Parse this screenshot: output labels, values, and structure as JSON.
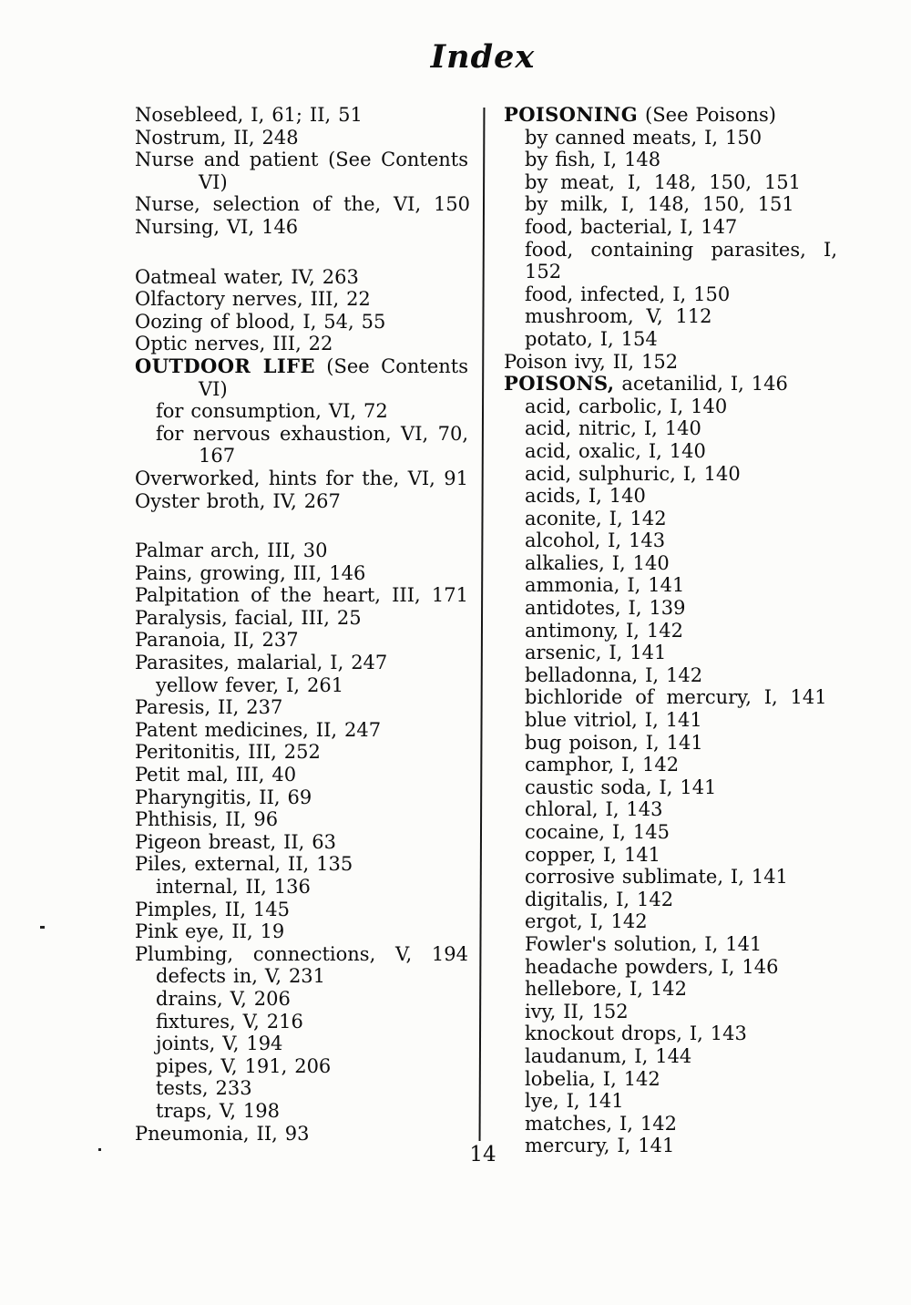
{
  "page": {
    "title": "Index",
    "page_number": "14",
    "colors": {
      "paper": "#fcfcfa",
      "ink": "#0d0d0d"
    }
  },
  "columns": {
    "left": [
      {
        "t": "Nosebleed, I, 61; II, 51"
      },
      {
        "t": "Nostrum, II, 248"
      },
      {
        "t": "Nurse and patient (See Contents",
        "j": true
      },
      {
        "t": "VI)",
        "i": 2
      },
      {
        "t": "Nurse, selection of the, VI, 150",
        "w": true
      },
      {
        "t": "Nursing, VI, 146"
      },
      {
        "gap": true
      },
      {
        "t": "Oatmeal water, IV, 263"
      },
      {
        "t": "Olfactory nerves, III, 22"
      },
      {
        "t": "Oozing of blood, I, 54, 55"
      },
      {
        "t": "Optic nerves, III, 22"
      },
      {
        "b": "OUTDOOR LIFE",
        "t": " (See Contents",
        "j": true
      },
      {
        "t": "VI)",
        "i": 2
      },
      {
        "t": "for consumption, VI, 72",
        "i": 1
      },
      {
        "t": "for nervous exhaustion, VI, 70,",
        "i": 1,
        "j": true
      },
      {
        "t": "167",
        "i": 2
      },
      {
        "t": "Overworked, hints for the, VI, 91",
        "j": true
      },
      {
        "t": "Oyster broth, IV, 267"
      },
      {
        "gap": true
      },
      {
        "t": "Palmar arch, III, 30"
      },
      {
        "t": "Pains, growing, III, 146"
      },
      {
        "t": "Palpitation of the heart, III, 171",
        "j": true
      },
      {
        "t": "Paralysis, facial, III, 25"
      },
      {
        "t": "Paranoia, II, 237"
      },
      {
        "t": "Parasites, malarial, I, 247"
      },
      {
        "t": "yellow fever, I, 261",
        "i": 1
      },
      {
        "t": "Paresis, II, 237"
      },
      {
        "t": "Patent medicines, II, 247"
      },
      {
        "t": "Peritonitis, III, 252"
      },
      {
        "t": "Petit mal, III, 40"
      },
      {
        "t": "Pharyngitis, II, 69"
      },
      {
        "t": "Phthisis, II, 96"
      },
      {
        "t": "Pigeon breast, II, 63"
      },
      {
        "t": "Piles, external, II, 135"
      },
      {
        "t": "internal, II, 136",
        "i": 1
      },
      {
        "t": "Pimples, II, 145"
      },
      {
        "t": "Pink eye, II, 19"
      },
      {
        "t": "Plumbing, connections, V, 194",
        "j": true
      },
      {
        "t": "defects in, V, 231",
        "i": 1
      },
      {
        "t": "drains, V, 206",
        "i": 1
      },
      {
        "t": "fixtures, V, 216",
        "i": 1
      },
      {
        "t": "joints, V, 194",
        "i": 1
      },
      {
        "t": "pipes, V, 191, 206",
        "i": 1
      },
      {
        "t": "tests, 233",
        "i": 1
      },
      {
        "t": "traps, V, 198",
        "i": 1
      },
      {
        "t": "Pneumonia, II, 93"
      }
    ],
    "right": [
      {
        "b": "POISONING",
        "t": " (See Poisons)"
      },
      {
        "t": "by canned meats, I, 150",
        "i": 1
      },
      {
        "t": "by fish, I, 148",
        "i": 1
      },
      {
        "t": "by meat, I, 148, 150, 151",
        "i": 1,
        "w": true
      },
      {
        "t": "by milk, I, 148, 150, 151",
        "i": 1,
        "w": true
      },
      {
        "t": "food, bacterial, I, 147",
        "i": 1
      },
      {
        "t": "food, containing parasites, I, 152",
        "i": 1,
        "j": true
      },
      {
        "t": "food, infected, I, 150",
        "i": 1
      },
      {
        "t": "mushroom, V, 112",
        "i": 1,
        "w": true
      },
      {
        "t": "potato, I, 154",
        "i": 1
      },
      {
        "t": "Poison ivy, II, 152"
      },
      {
        "b": "POISONS,",
        "t": " acetanilid, I, 146"
      },
      {
        "t": "acid, carbolic, I, 140",
        "i": 1
      },
      {
        "t": "acid, nitric, I, 140",
        "i": 1
      },
      {
        "t": "acid, oxalic, I, 140",
        "i": 1
      },
      {
        "t": "acid, sulphuric, I, 140",
        "i": 1
      },
      {
        "t": "acids, I, 140",
        "i": 1
      },
      {
        "t": "aconite, I, 142",
        "i": 1
      },
      {
        "t": "alcohol, I, 143",
        "i": 1
      },
      {
        "t": "alkalies, I, 140",
        "i": 1
      },
      {
        "t": "ammonia, I, 141",
        "i": 1
      },
      {
        "t": "antidotes, I, 139",
        "i": 1
      },
      {
        "t": "antimony, I, 142",
        "i": 1
      },
      {
        "t": "arsenic, I, 141",
        "i": 1
      },
      {
        "t": "belladonna, I, 142",
        "i": 1
      },
      {
        "t": "bichloride of mercury, I, 141",
        "i": 1,
        "w": true
      },
      {
        "t": "blue vitriol, I, 141",
        "i": 1
      },
      {
        "t": "bug poison, I, 141",
        "i": 1
      },
      {
        "t": "camphor, I, 142",
        "i": 1
      },
      {
        "t": "caustic soda, I, 141",
        "i": 1
      },
      {
        "t": "chloral, I, 143",
        "i": 1
      },
      {
        "t": "cocaine, I, 145",
        "i": 1
      },
      {
        "t": "copper, I, 141",
        "i": 1
      },
      {
        "t": "corrosive sublimate, I, 141",
        "i": 1
      },
      {
        "t": "digitalis, I, 142",
        "i": 1
      },
      {
        "t": "ergot, I, 142",
        "i": 1
      },
      {
        "t": "Fowler's solution, I, 141",
        "i": 1
      },
      {
        "t": "headache powders, I, 146",
        "i": 1
      },
      {
        "t": "hellebore, I, 142",
        "i": 1
      },
      {
        "t": "ivy, II, 152",
        "i": 1
      },
      {
        "t": "knockout drops, I, 143",
        "i": 1
      },
      {
        "t": "laudanum, I, 144",
        "i": 1
      },
      {
        "t": "lobelia, I, 142",
        "i": 1
      },
      {
        "t": "lye, I, 141",
        "i": 1
      },
      {
        "t": "matches, I, 142",
        "i": 1
      },
      {
        "t": "mercury, I, 141",
        "i": 1
      }
    ]
  }
}
